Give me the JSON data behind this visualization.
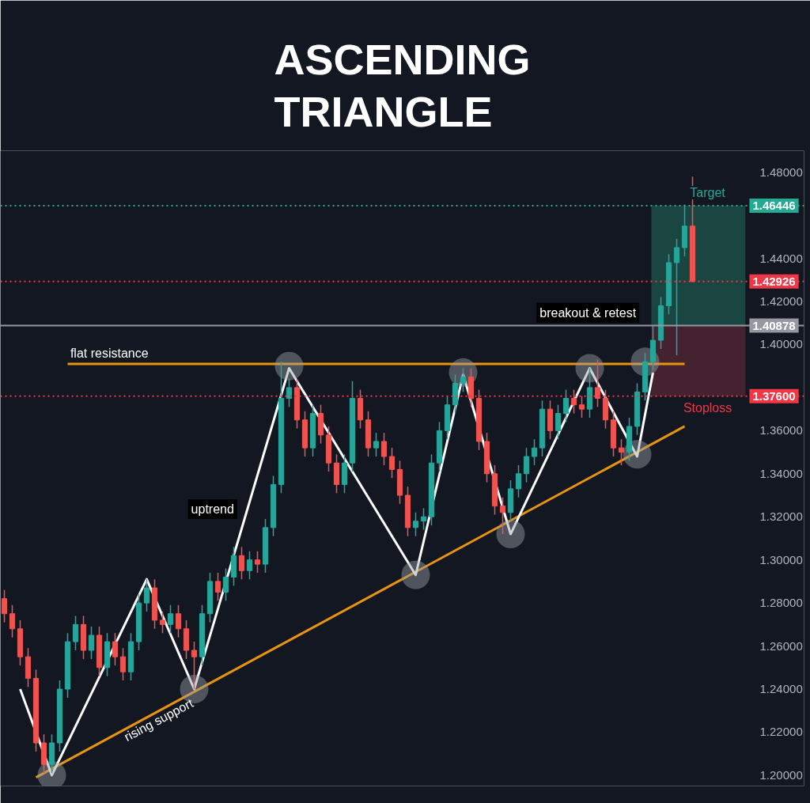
{
  "chart_data": {
    "type": "candlestick",
    "title": "ASCENDING TRIANGLE",
    "categories": [
      null,
      null,
      null,
      null,
      null,
      null,
      null,
      null,
      null,
      null,
      null,
      null,
      null,
      null,
      null,
      null,
      null,
      null,
      null,
      null,
      null,
      null,
      null,
      null,
      null,
      null,
      null,
      null,
      null,
      null,
      null,
      null,
      null,
      null,
      null,
      null,
      null,
      null,
      null,
      null,
      null,
      null,
      null,
      null,
      null,
      null,
      null,
      null,
      null,
      null,
      null,
      null,
      null,
      null,
      null,
      null,
      null,
      null,
      null,
      null,
      null,
      null,
      null,
      null,
      null,
      null,
      null,
      null,
      null,
      null,
      null,
      null,
      null,
      null,
      null,
      null,
      null,
      null,
      null,
      null,
      null,
      null,
      null,
      null,
      null,
      null,
      null,
      null
    ],
    "ohlc": [
      [
        1.282,
        1.286,
        1.271,
        1.275
      ],
      [
        1.275,
        1.279,
        1.264,
        1.268
      ],
      [
        1.268,
        1.272,
        1.251,
        1.255
      ],
      [
        1.255,
        1.259,
        1.241,
        1.245
      ],
      [
        1.245,
        1.249,
        1.211,
        1.215
      ],
      [
        1.215,
        1.219,
        1.201,
        1.205
      ],
      [
        1.205,
        1.219,
        1.201,
        1.215
      ],
      [
        1.215,
        1.244,
        1.211,
        1.24
      ],
      [
        1.24,
        1.266,
        1.236,
        1.262
      ],
      [
        1.262,
        1.274,
        1.258,
        1.27
      ],
      [
        1.27,
        1.274,
        1.254,
        1.258
      ],
      [
        1.258,
        1.269,
        1.254,
        1.265
      ],
      [
        1.265,
        1.269,
        1.246,
        1.25
      ],
      [
        1.25,
        1.266,
        1.246,
        1.262
      ],
      [
        1.262,
        1.266,
        1.251,
        1.255
      ],
      [
        1.255,
        1.259,
        1.244,
        1.248
      ],
      [
        1.248,
        1.266,
        1.244,
        1.262
      ],
      [
        1.262,
        1.284,
        1.258,
        1.28
      ],
      [
        1.28,
        1.291,
        1.276,
        1.287
      ],
      [
        1.287,
        1.291,
        1.268,
        1.272
      ],
      [
        1.272,
        1.276,
        1.266,
        1.27
      ],
      [
        1.27,
        1.279,
        1.266,
        1.275
      ],
      [
        1.275,
        1.279,
        1.264,
        1.268
      ],
      [
        1.268,
        1.272,
        1.254,
        1.258
      ],
      [
        1.258,
        1.262,
        1.24,
        1.255
      ],
      [
        1.255,
        1.279,
        1.251,
        1.275
      ],
      [
        1.275,
        1.294,
        1.271,
        1.29
      ],
      [
        1.29,
        1.294,
        1.281,
        1.285
      ],
      [
        1.285,
        1.296,
        1.281,
        1.292
      ],
      [
        1.292,
        1.306,
        1.288,
        1.302
      ],
      [
        1.302,
        1.306,
        1.291,
        1.295
      ],
      [
        1.295,
        1.304,
        1.291,
        1.3
      ],
      [
        1.3,
        1.304,
        1.294,
        1.298
      ],
      [
        1.298,
        1.319,
        1.294,
        1.315
      ],
      [
        1.315,
        1.339,
        1.311,
        1.335
      ],
      [
        1.335,
        1.392,
        1.331,
        1.375
      ],
      [
        1.375,
        1.384,
        1.371,
        1.38
      ],
      [
        1.38,
        1.384,
        1.361,
        1.365
      ],
      [
        1.365,
        1.369,
        1.348,
        1.352
      ],
      [
        1.352,
        1.372,
        1.348,
        1.368
      ],
      [
        1.368,
        1.372,
        1.354,
        1.358
      ],
      [
        1.358,
        1.362,
        1.341,
        1.345
      ],
      [
        1.345,
        1.349,
        1.331,
        1.335
      ],
      [
        1.335,
        1.349,
        1.331,
        1.345
      ],
      [
        1.345,
        1.383,
        1.341,
        1.375
      ],
      [
        1.375,
        1.379,
        1.361,
        1.365
      ],
      [
        1.365,
        1.369,
        1.348,
        1.352
      ],
      [
        1.352,
        1.359,
        1.348,
        1.355
      ],
      [
        1.355,
        1.359,
        1.344,
        1.348
      ],
      [
        1.348,
        1.352,
        1.338,
        1.342
      ],
      [
        1.342,
        1.346,
        1.326,
        1.33
      ],
      [
        1.33,
        1.334,
        1.311,
        1.315
      ],
      [
        1.315,
        1.322,
        1.311,
        1.318
      ],
      [
        1.318,
        1.324,
        1.314,
        1.32
      ],
      [
        1.32,
        1.349,
        1.316,
        1.345
      ],
      [
        1.345,
        1.364,
        1.341,
        1.36
      ],
      [
        1.36,
        1.376,
        1.356,
        1.372
      ],
      [
        1.372,
        1.386,
        1.368,
        1.382
      ],
      [
        1.382,
        1.389,
        1.378,
        1.385
      ],
      [
        1.385,
        1.389,
        1.371,
        1.375
      ],
      [
        1.375,
        1.379,
        1.351,
        1.355
      ],
      [
        1.355,
        1.359,
        1.336,
        1.34
      ],
      [
        1.34,
        1.344,
        1.321,
        1.325
      ],
      [
        1.325,
        1.329,
        1.312,
        1.322
      ],
      [
        1.322,
        1.337,
        1.318,
        1.333
      ],
      [
        1.333,
        1.344,
        1.329,
        1.34
      ],
      [
        1.34,
        1.352,
        1.336,
        1.348
      ],
      [
        1.348,
        1.356,
        1.344,
        1.352
      ],
      [
        1.352,
        1.374,
        1.348,
        1.37
      ],
      [
        1.37,
        1.374,
        1.356,
        1.36
      ],
      [
        1.36,
        1.372,
        1.356,
        1.368
      ],
      [
        1.368,
        1.379,
        1.364,
        1.375
      ],
      [
        1.375,
        1.379,
        1.368,
        1.372
      ],
      [
        1.372,
        1.376,
        1.366,
        1.37
      ],
      [
        1.37,
        1.389,
        1.366,
        1.38
      ],
      [
        1.38,
        1.393,
        1.371,
        1.375
      ],
      [
        1.375,
        1.379,
        1.361,
        1.365
      ],
      [
        1.365,
        1.369,
        1.348,
        1.352
      ],
      [
        1.352,
        1.356,
        1.344,
        1.35
      ],
      [
        1.35,
        1.366,
        1.346,
        1.362
      ],
      [
        1.362,
        1.382,
        1.358,
        1.378
      ],
      [
        1.378,
        1.396,
        1.374,
        1.392
      ],
      [
        1.392,
        1.409,
        1.388,
        1.402
      ],
      [
        1.402,
        1.422,
        1.398,
        1.418
      ],
      [
        1.418,
        1.442,
        1.414,
        1.438
      ],
      [
        1.438,
        1.449,
        1.395,
        1.445
      ],
      [
        1.445,
        1.465,
        1.441,
        1.455
      ],
      [
        1.455,
        1.478,
        1.429,
        1.42926
      ]
    ],
    "colors": [
      "#ef5350",
      "#ef5350",
      "#ef5350",
      "#ef5350",
      "#ef5350",
      "#ef5350",
      "#26a69a",
      "#26a69a",
      "#26a69a",
      "#26a69a",
      "#ef5350",
      "#26a69a",
      "#ef5350",
      "#26a69a",
      "#ef5350",
      "#ef5350",
      "#26a69a",
      "#26a69a",
      "#26a69a",
      "#ef5350",
      "#ef5350",
      "#26a69a",
      "#ef5350",
      "#ef5350",
      "#ef5350",
      "#26a69a",
      "#26a69a",
      "#ef5350",
      "#26a69a",
      "#26a69a",
      "#ef5350",
      "#26a69a",
      "#ef5350",
      "#26a69a",
      "#26a69a",
      "#26a69a",
      "#26a69a",
      "#ef5350",
      "#ef5350",
      "#26a69a",
      "#ef5350",
      "#ef5350",
      "#ef5350",
      "#26a69a",
      "#26a69a",
      "#ef5350",
      "#ef5350",
      "#26a69a",
      "#ef5350",
      "#ef5350",
      "#ef5350",
      "#ef5350",
      "#26a69a",
      "#26a69a",
      "#26a69a",
      "#26a69a",
      "#26a69a",
      "#26a69a",
      "#26a69a",
      "#ef5350",
      "#ef5350",
      "#ef5350",
      "#ef5350",
      "#ef5350",
      "#26a69a",
      "#26a69a",
      "#26a69a",
      "#26a69a",
      "#26a69a",
      "#ef5350",
      "#26a69a",
      "#26a69a",
      "#ef5350",
      "#ef5350",
      "#26a69a",
      "#ef5350",
      "#ef5350",
      "#ef5350",
      "#ef5350",
      "#26a69a",
      "#26a69a",
      "#26a69a",
      "#26a69a",
      "#26a69a",
      "#26a69a",
      "#26a69a",
      "#26a69a",
      "#ef5350"
    ],
    "series": [
      {
        "type": "line",
        "color": "#e8940f",
        "values": [
          null,
          null,
          null,
          null,
          1.199,
          null,
          null,
          null,
          null,
          null,
          null,
          null,
          null,
          null,
          null,
          null,
          null,
          null,
          null,
          null,
          null,
          null,
          null,
          null,
          null,
          null,
          null,
          null,
          null,
          null,
          null,
          null,
          null,
          null,
          null,
          null,
          null,
          null,
          null,
          null,
          null,
          null,
          null,
          null,
          null,
          null,
          null,
          null,
          null,
          null,
          null,
          null,
          null,
          null,
          null,
          null,
          null,
          null,
          null,
          null,
          null,
          null,
          null,
          null,
          null,
          null,
          null,
          null,
          null,
          null,
          null,
          null,
          null,
          null,
          null,
          null,
          null,
          null,
          null,
          null,
          null,
          null,
          null,
          null,
          null,
          null,
          1.362,
          null
        ]
      },
      {
        "type": "line",
        "color": "#e8940f",
        "values": [
          null,
          null,
          null,
          null,
          null,
          null,
          null,
          null,
          1.391,
          null,
          null,
          null,
          null,
          null,
          null,
          null,
          null,
          null,
          null,
          null,
          null,
          null,
          null,
          null,
          null,
          null,
          null,
          null,
          null,
          null,
          null,
          null,
          null,
          null,
          null,
          null,
          null,
          null,
          null,
          null,
          null,
          null,
          null,
          null,
          null,
          null,
          null,
          null,
          null,
          null,
          null,
          null,
          null,
          null,
          null,
          null,
          null,
          null,
          null,
          null,
          null,
          null,
          null,
          null,
          null,
          null,
          null,
          null,
          null,
          null,
          null,
          null,
          null,
          null,
          null,
          null,
          null,
          null,
          null,
          null,
          null,
          null,
          null,
          null,
          null,
          null,
          1.391,
          null
        ]
      },
      {
        "type": "line",
        "color": "#ffffff",
        "values": [
          null,
          null,
          1.24,
          null,
          null,
          null,
          1.2,
          null,
          null,
          null,
          null,
          null,
          null,
          null,
          null,
          null,
          null,
          null,
          1.291,
          null,
          null,
          null,
          null,
          null,
          1.24,
          null,
          null,
          null,
          null,
          null,
          null,
          null,
          null,
          null,
          null,
          null,
          1.389,
          null,
          null,
          null,
          null,
          null,
          null,
          null,
          null,
          null,
          null,
          null,
          null,
          null,
          null,
          null,
          1.293,
          null,
          null,
          null,
          null,
          null,
          1.386,
          null,
          null,
          null,
          null,
          null,
          1.312,
          null,
          null,
          null,
          null,
          null,
          null,
          null,
          null,
          null,
          1.389,
          null,
          null,
          null,
          null,
          null,
          1.348,
          null,
          1.387,
          null,
          null,
          null,
          null,
          null
        ]
      },
      {
        "type": "scatter",
        "color": "#9aa0a6",
        "marker": "circle",
        "values": [
          null,
          null,
          null,
          null,
          null,
          null,
          1.2,
          null,
          null,
          null,
          null,
          null,
          null,
          null,
          null,
          null,
          null,
          null,
          null,
          null,
          null,
          null,
          null,
          null,
          1.24,
          null,
          null,
          null,
          null,
          null,
          null,
          null,
          null,
          null,
          null,
          null,
          1.39,
          null,
          null,
          null,
          null,
          null,
          null,
          null,
          null,
          null,
          null,
          null,
          null,
          null,
          null,
          null,
          1.293,
          null,
          null,
          null,
          null,
          null,
          1.387,
          null,
          null,
          null,
          null,
          null,
          1.312,
          null,
          null,
          null,
          null,
          null,
          null,
          null,
          null,
          null,
          1.389,
          null,
          null,
          null,
          null,
          null,
          1.349,
          1.392,
          null,
          null,
          null,
          null,
          null,
          null
        ]
      }
    ],
    "ylim": [
      1.195,
      1.49
    ],
    "yticks": [
      {
        "value": 1.2,
        "label": "1.20000"
      },
      {
        "value": 1.22,
        "label": "1.22000"
      },
      {
        "value": 1.24,
        "label": "1.24000"
      },
      {
        "value": 1.26,
        "label": "1.26000"
      },
      {
        "value": 1.28,
        "label": "1.28000"
      },
      {
        "value": 1.3,
        "label": "1.30000"
      },
      {
        "value": 1.32,
        "label": "1.32000"
      },
      {
        "value": 1.34,
        "label": "1.34000"
      },
      {
        "value": 1.36,
        "label": "1.36000"
      },
      {
        "value": 1.4,
        "label": "1.40000"
      },
      {
        "value": 1.42,
        "label": "1.42000"
      },
      {
        "value": 1.44,
        "label": "1.44000"
      },
      {
        "value": 1.48,
        "label": "1.48000"
      }
    ],
    "tick_labels": "y",
    "grid": false,
    "ref_lines": [
      {
        "axis": "y",
        "value": 1.46446,
        "label": "1.46446",
        "color": "#22ab94",
        "line_style": "dotted"
      },
      {
        "axis": "y",
        "value": 1.42926,
        "label": "1.42926",
        "color": "#f23645",
        "line_style": "dotted"
      },
      {
        "axis": "y",
        "value": 1.40878,
        "label": "1.40878",
        "color": "#9598a1",
        "line_style": "solid"
      },
      {
        "axis": "y",
        "value": 1.376,
        "label": "1.37600",
        "color": "#f23645",
        "line_style": "dotted"
      }
    ],
    "bands": [
      {
        "axis": "y",
        "from": 1.40878,
        "to": 1.46446,
        "color": "#1c4a44"
      },
      {
        "axis": "y",
        "from": 1.376,
        "to": 1.40878,
        "color": "#4a2431"
      }
    ],
    "annotations": [
      "flat resistance",
      "uptrend",
      "breakout & retest",
      "rising support",
      "Target",
      "Stoploss"
    ]
  }
}
